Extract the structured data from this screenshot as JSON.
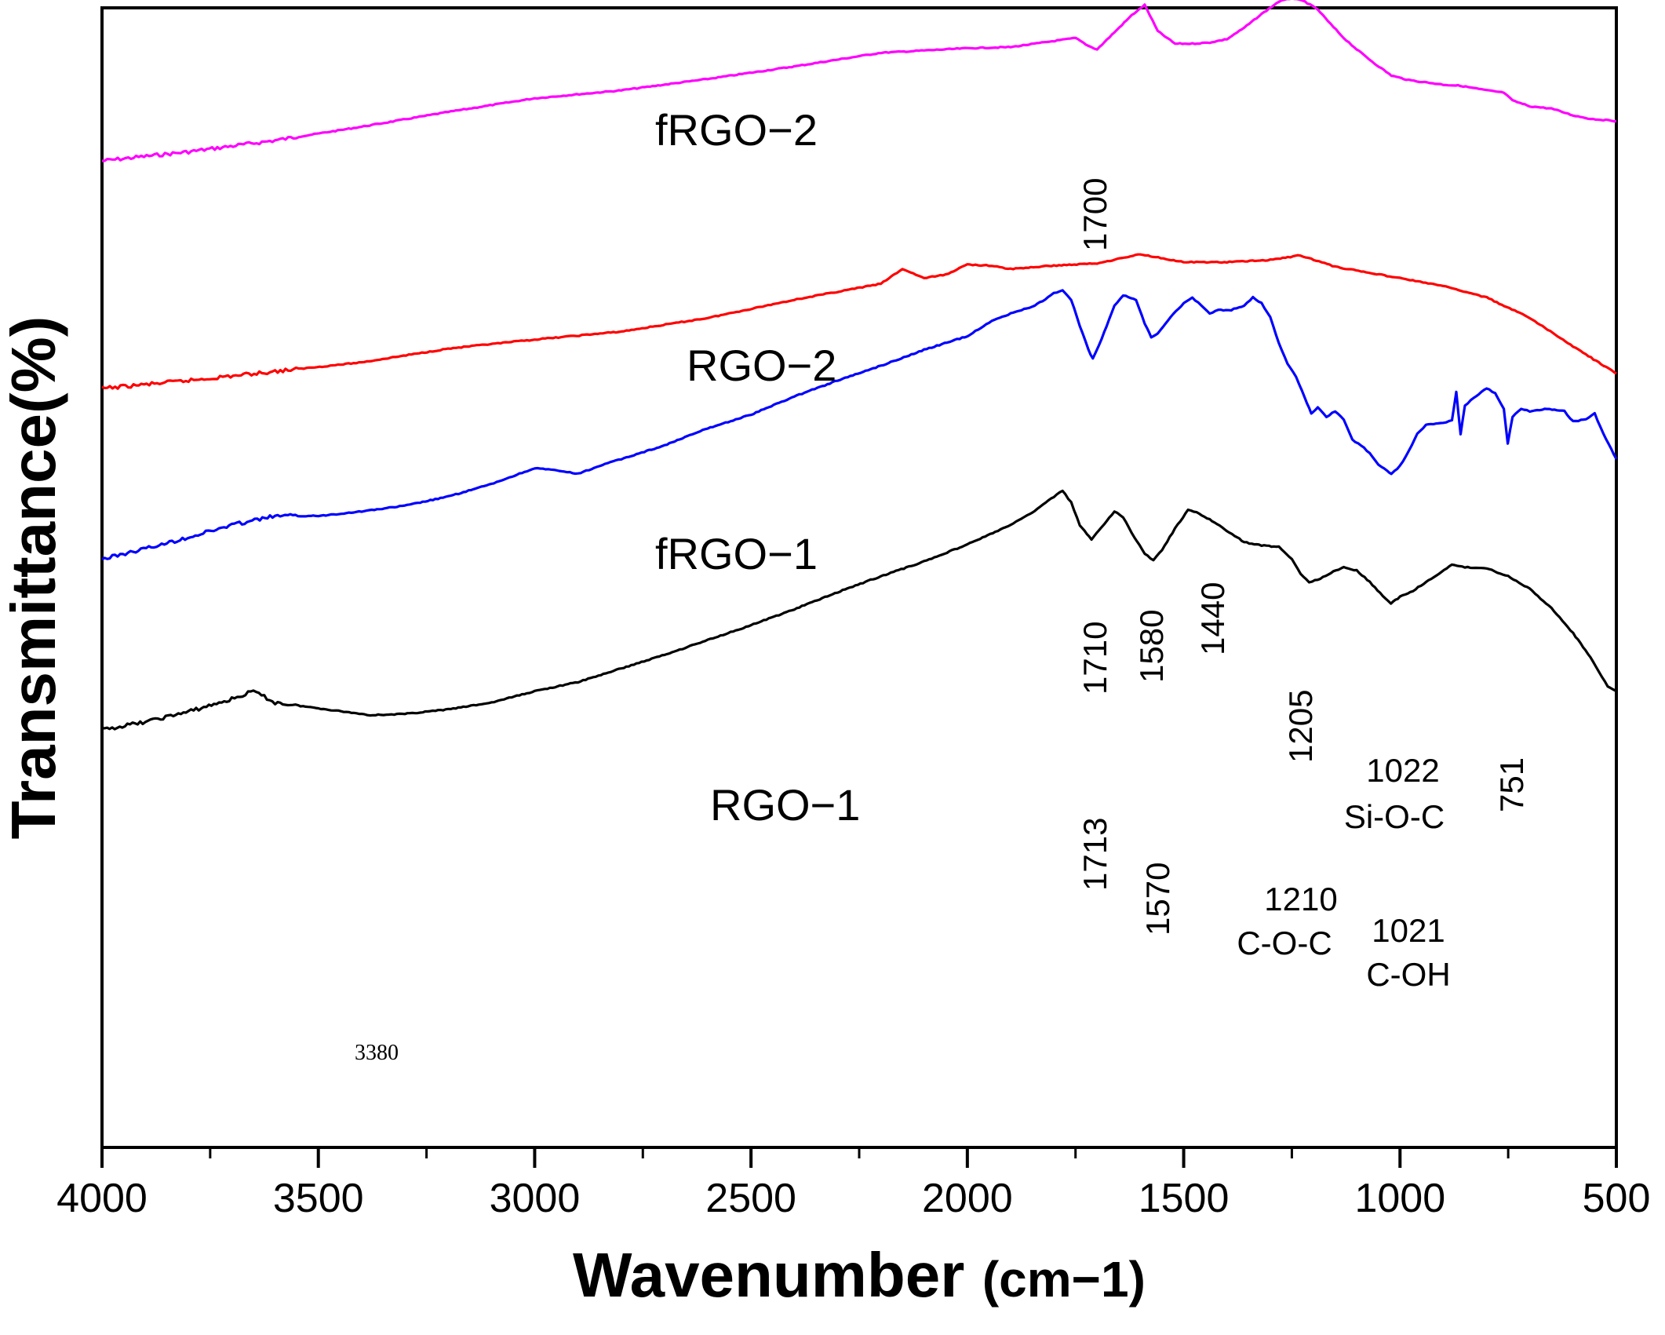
{
  "chart_data": {
    "type": "line",
    "xlabel_main": "Wavenumber",
    "xlabel_unit": "(cm−1)",
    "ylabel": "Transmittance(%)",
    "xlim": [
      4000,
      500
    ],
    "x_ticks": [
      4000,
      3500,
      3000,
      2500,
      2000,
      1500,
      1000,
      500
    ],
    "grid": false,
    "series": [
      {
        "name": "fRGO−2",
        "color": "#ff00ff",
        "points": [
          [
            4000,
            100
          ],
          [
            3800,
            108
          ],
          [
            3600,
            118
          ],
          [
            3400,
            130
          ],
          [
            3200,
            143
          ],
          [
            3000,
            155
          ],
          [
            2800,
            162
          ],
          [
            2600,
            172
          ],
          [
            2400,
            183
          ],
          [
            2200,
            195
          ],
          [
            2100,
            197
          ],
          [
            2000,
            199
          ],
          [
            1900,
            200
          ],
          [
            1750,
            208
          ],
          [
            1720,
            201
          ],
          [
            1700,
            198
          ],
          [
            1660,
            213
          ],
          [
            1620,
            228
          ],
          [
            1590,
            237
          ],
          [
            1560,
            214
          ],
          [
            1520,
            203
          ],
          [
            1480,
            203
          ],
          [
            1440,
            204
          ],
          [
            1400,
            207
          ],
          [
            1360,
            217
          ],
          [
            1320,
            229
          ],
          [
            1280,
            240
          ],
          [
            1250,
            243
          ],
          [
            1220,
            240
          ],
          [
            1190,
            233
          ],
          [
            1160,
            220
          ],
          [
            1130,
            208
          ],
          [
            1100,
            198
          ],
          [
            1060,
            186
          ],
          [
            1020,
            175
          ],
          [
            980,
            171
          ],
          [
            900,
            167
          ],
          [
            860,
            166
          ],
          [
            800,
            162
          ],
          [
            760,
            160
          ],
          [
            740,
            153
          ],
          [
            700,
            148
          ],
          [
            650,
            146
          ],
          [
            600,
            140
          ],
          [
            560,
            137
          ],
          [
            500,
            135
          ]
        ]
      },
      {
        "name": "RGO−2",
        "color": "#ff0000",
        "points": [
          [
            4000,
            -100
          ],
          [
            3800,
            -93
          ],
          [
            3600,
            -85
          ],
          [
            3400,
            -77
          ],
          [
            3200,
            -65
          ],
          [
            3000,
            -57
          ],
          [
            2800,
            -50
          ],
          [
            2600,
            -38
          ],
          [
            2400,
            -22
          ],
          [
            2200,
            -8
          ],
          [
            2150,
            5
          ],
          [
            2100,
            -3
          ],
          [
            2050,
            0
          ],
          [
            2000,
            9
          ],
          [
            1950,
            8
          ],
          [
            1900,
            5
          ],
          [
            1800,
            8
          ],
          [
            1700,
            10
          ],
          [
            1600,
            18
          ],
          [
            1500,
            11
          ],
          [
            1400,
            11
          ],
          [
            1300,
            13
          ],
          [
            1230,
            17
          ],
          [
            1150,
            7
          ],
          [
            1000,
            -3
          ],
          [
            900,
            -10
          ],
          [
            800,
            -20
          ],
          [
            700,
            -38
          ],
          [
            600,
            -63
          ],
          [
            500,
            -87
          ]
        ]
      },
      {
        "name": "fRGO−1",
        "color": "#0000ff",
        "points": [
          [
            4000,
            -250
          ],
          [
            3850,
            -236
          ],
          [
            3700,
            -220
          ],
          [
            3600,
            -212
          ],
          [
            3500,
            -212
          ],
          [
            3400,
            -208
          ],
          [
            3300,
            -203
          ],
          [
            3200,
            -195
          ],
          [
            3100,
            -184
          ],
          [
            3000,
            -170
          ],
          [
            2950,
            -172
          ],
          [
            2900,
            -175
          ],
          [
            2850,
            -168
          ],
          [
            2800,
            -162
          ],
          [
            2700,
            -150
          ],
          [
            2600,
            -135
          ],
          [
            2500,
            -123
          ],
          [
            2400,
            -107
          ],
          [
            2300,
            -93
          ],
          [
            2200,
            -80
          ],
          [
            2100,
            -66
          ],
          [
            2000,
            -54
          ],
          [
            1950,
            -42
          ],
          [
            1900,
            -34
          ],
          [
            1850,
            -28
          ],
          [
            1820,
            -22
          ],
          [
            1800,
            -16
          ],
          [
            1780,
            -14
          ],
          [
            1760,
            -22
          ],
          [
            1740,
            -45
          ],
          [
            1720,
            -66
          ],
          [
            1710,
            -74
          ],
          [
            1690,
            -57
          ],
          [
            1660,
            -27
          ],
          [
            1640,
            -18
          ],
          [
            1610,
            -22
          ],
          [
            1590,
            -43
          ],
          [
            1575,
            -55
          ],
          [
            1560,
            -52
          ],
          [
            1530,
            -37
          ],
          [
            1500,
            -25
          ],
          [
            1480,
            -20
          ],
          [
            1460,
            -27
          ],
          [
            1440,
            -34
          ],
          [
            1420,
            -31
          ],
          [
            1390,
            -31
          ],
          [
            1360,
            -27
          ],
          [
            1340,
            -20
          ],
          [
            1320,
            -25
          ],
          [
            1300,
            -37
          ],
          [
            1280,
            -60
          ],
          [
            1260,
            -78
          ],
          [
            1240,
            -90
          ],
          [
            1220,
            -108
          ],
          [
            1205,
            -122
          ],
          [
            1190,
            -117
          ],
          [
            1170,
            -125
          ],
          [
            1150,
            -120
          ],
          [
            1130,
            -127
          ],
          [
            1110,
            -145
          ],
          [
            1090,
            -150
          ],
          [
            1070,
            -157
          ],
          [
            1050,
            -167
          ],
          [
            1030,
            -172
          ],
          [
            1020,
            -175
          ],
          [
            1000,
            -168
          ],
          [
            980,
            -155
          ],
          [
            960,
            -140
          ],
          [
            940,
            -132
          ],
          [
            900,
            -130
          ],
          [
            880,
            -128
          ],
          [
            870,
            -103
          ],
          [
            860,
            -140
          ],
          [
            850,
            -115
          ],
          [
            830,
            -108
          ],
          [
            800,
            -100
          ],
          [
            780,
            -104
          ],
          [
            760,
            -118
          ],
          [
            751,
            -148
          ],
          [
            740,
            -125
          ],
          [
            720,
            -118
          ],
          [
            700,
            -120
          ],
          [
            660,
            -118
          ],
          [
            620,
            -120
          ],
          [
            600,
            -129
          ],
          [
            570,
            -127
          ],
          [
            550,
            -122
          ],
          [
            530,
            -140
          ],
          [
            500,
            -162
          ]
        ]
      },
      {
        "name": "RGO−1",
        "color": "#000000",
        "points": [
          [
            4000,
            -400
          ],
          [
            3900,
            -393
          ],
          [
            3800,
            -384
          ],
          [
            3700,
            -373
          ],
          [
            3650,
            -366
          ],
          [
            3600,
            -376
          ],
          [
            3500,
            -381
          ],
          [
            3400,
            -386
          ],
          [
            3380,
            -387
          ],
          [
            3300,
            -386
          ],
          [
            3200,
            -382
          ],
          [
            3100,
            -376
          ],
          [
            3000,
            -366
          ],
          [
            2900,
            -358
          ],
          [
            2800,
            -346
          ],
          [
            2700,
            -334
          ],
          [
            2600,
            -321
          ],
          [
            2500,
            -308
          ],
          [
            2400,
            -294
          ],
          [
            2300,
            -279
          ],
          [
            2200,
            -265
          ],
          [
            2100,
            -252
          ],
          [
            2000,
            -237
          ],
          [
            1900,
            -220
          ],
          [
            1850,
            -209
          ],
          [
            1800,
            -195
          ],
          [
            1780,
            -190
          ],
          [
            1760,
            -200
          ],
          [
            1740,
            -220
          ],
          [
            1713,
            -233
          ],
          [
            1690,
            -222
          ],
          [
            1660,
            -208
          ],
          [
            1640,
            -213
          ],
          [
            1620,
            -227
          ],
          [
            1590,
            -245
          ],
          [
            1570,
            -251
          ],
          [
            1550,
            -242
          ],
          [
            1520,
            -223
          ],
          [
            1490,
            -207
          ],
          [
            1470,
            -209
          ],
          [
            1440,
            -215
          ],
          [
            1400,
            -225
          ],
          [
            1360,
            -235
          ],
          [
            1320,
            -238
          ],
          [
            1280,
            -239
          ],
          [
            1250,
            -250
          ],
          [
            1230,
            -263
          ],
          [
            1210,
            -270
          ],
          [
            1190,
            -268
          ],
          [
            1160,
            -262
          ],
          [
            1130,
            -257
          ],
          [
            1100,
            -260
          ],
          [
            1070,
            -270
          ],
          [
            1040,
            -282
          ],
          [
            1021,
            -289
          ],
          [
            1000,
            -283
          ],
          [
            970,
            -278
          ],
          [
            940,
            -270
          ],
          [
            910,
            -263
          ],
          [
            880,
            -255
          ],
          [
            850,
            -257
          ],
          [
            800,
            -258
          ],
          [
            750,
            -265
          ],
          [
            700,
            -276
          ],
          [
            650,
            -293
          ],
          [
            600,
            -315
          ],
          [
            560,
            -336
          ],
          [
            540,
            -349
          ],
          [
            520,
            -362
          ],
          [
            500,
            -366
          ]
        ]
      }
    ],
    "series_labels": [
      {
        "text": "fRGO−2",
        "series": 0
      },
      {
        "text": "RGO−2",
        "series": 1
      },
      {
        "text": "fRGO−1",
        "series": 2
      },
      {
        "text": "RGO−1",
        "series": 3
      }
    ],
    "annotations": [
      {
        "text": "1700"
      },
      {
        "text": "1710"
      },
      {
        "text": "1580"
      },
      {
        "text": "1440"
      },
      {
        "text": "1205"
      },
      {
        "text": "1022"
      },
      {
        "text": "Si-O-C"
      },
      {
        "text": "751"
      },
      {
        "text": "1713"
      },
      {
        "text": "1570"
      },
      {
        "text": "1210"
      },
      {
        "text": "C-O-C"
      },
      {
        "text": "1021"
      },
      {
        "text": "C-OH"
      },
      {
        "text": "3380"
      }
    ]
  }
}
